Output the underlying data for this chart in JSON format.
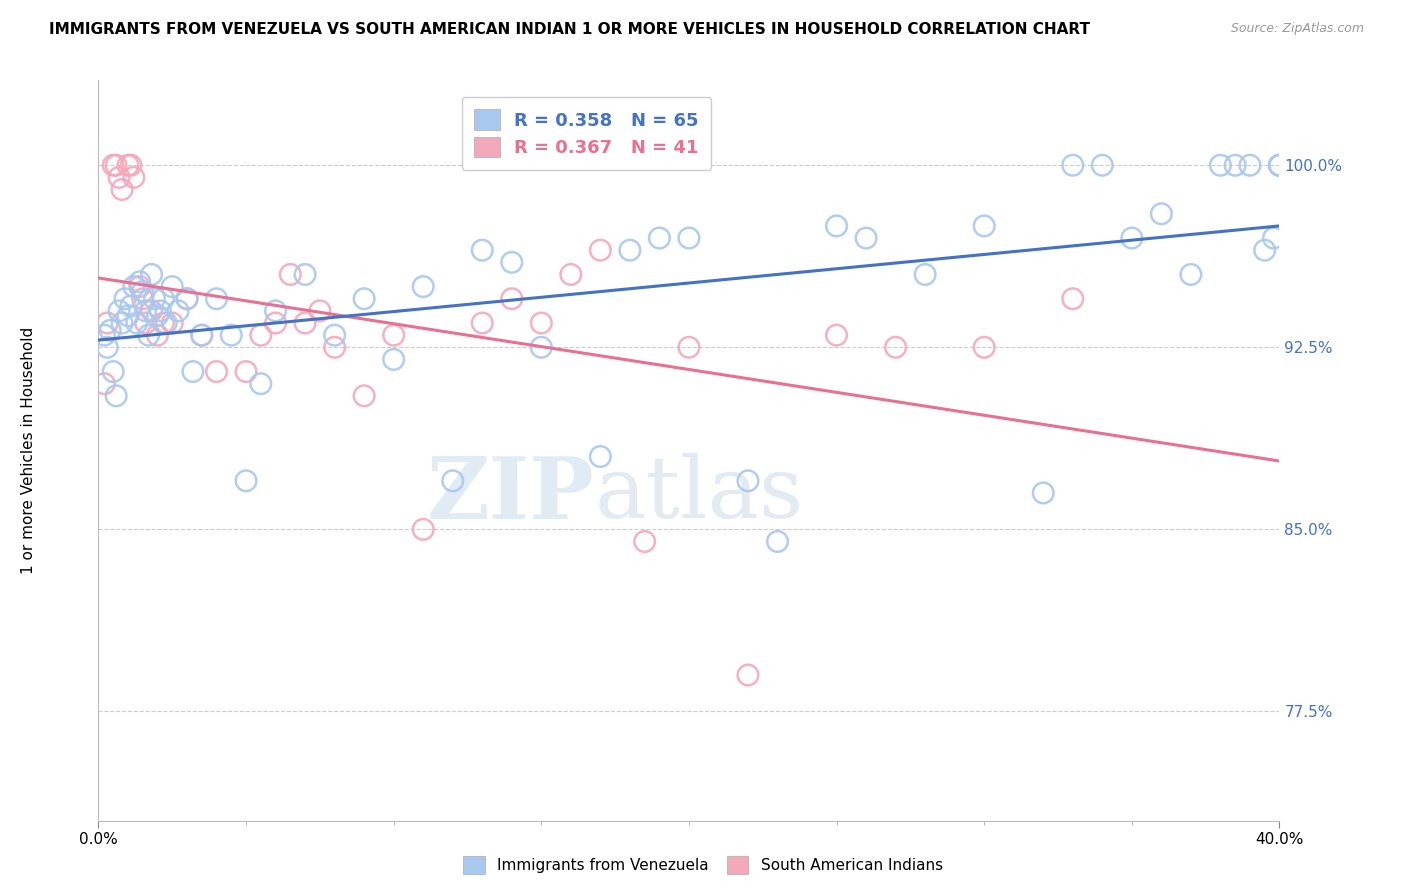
{
  "title": "IMMIGRANTS FROM VENEZUELA VS SOUTH AMERICAN INDIAN 1 OR MORE VEHICLES IN HOUSEHOLD CORRELATION CHART",
  "source": "Source: ZipAtlas.com",
  "ylabel": "1 or more Vehicles in Household",
  "yticks": [
    77.5,
    85.0,
    92.5,
    100.0
  ],
  "ytick_labels": [
    "77.5%",
    "85.0%",
    "92.5%",
    "100.0%"
  ],
  "xmin": 0.0,
  "xmax": 40.0,
  "ymin": 73.0,
  "ymax": 103.5,
  "blue_R": 0.358,
  "blue_N": 65,
  "pink_R": 0.367,
  "pink_N": 41,
  "blue_color": "#A8C8F0",
  "pink_color": "#F4A8BC",
  "blue_line_color": "#4472C4",
  "pink_line_color": "#E87090",
  "legend_blue_label": "Immigrants from Venezuela",
  "legend_pink_label": "South American Indians",
  "watermark_zip": "ZIP",
  "watermark_atlas": "atlas",
  "blue_x": [
    0.2,
    0.3,
    0.4,
    0.5,
    0.6,
    0.7,
    0.8,
    0.9,
    1.0,
    1.1,
    1.2,
    1.3,
    1.4,
    1.5,
    1.6,
    1.7,
    1.8,
    1.9,
    2.0,
    2.1,
    2.2,
    2.3,
    2.5,
    2.7,
    3.0,
    3.2,
    3.5,
    4.0,
    4.5,
    5.0,
    5.5,
    6.0,
    7.0,
    8.0,
    9.0,
    10.0,
    11.0,
    12.0,
    13.0,
    14.0,
    15.0,
    17.0,
    18.0,
    19.0,
    20.0,
    22.0,
    23.0,
    25.0,
    26.0,
    28.0,
    30.0,
    32.0,
    33.0,
    34.0,
    35.0,
    36.0,
    37.0,
    38.0,
    38.5,
    39.0,
    39.5,
    39.8,
    40.0,
    40.0,
    40.0
  ],
  "blue_y": [
    93.0,
    92.5,
    93.2,
    91.5,
    90.5,
    94.0,
    93.5,
    94.5,
    93.8,
    94.2,
    95.0,
    93.5,
    95.2,
    94.8,
    94.0,
    93.0,
    95.5,
    94.5,
    93.8,
    94.0,
    94.5,
    93.5,
    95.0,
    94.0,
    94.5,
    91.5,
    93.0,
    94.5,
    93.0,
    87.0,
    91.0,
    94.0,
    95.5,
    93.0,
    94.5,
    92.0,
    95.0,
    87.0,
    96.5,
    96.0,
    92.5,
    88.0,
    96.5,
    97.0,
    97.0,
    87.0,
    84.5,
    97.5,
    97.0,
    95.5,
    97.5,
    86.5,
    100.0,
    100.0,
    97.0,
    98.0,
    95.5,
    100.0,
    100.0,
    100.0,
    96.5,
    97.0,
    100.0,
    100.0,
    100.0
  ],
  "pink_x": [
    0.2,
    0.3,
    0.5,
    0.6,
    0.7,
    0.8,
    1.0,
    1.1,
    1.2,
    1.4,
    1.5,
    1.6,
    1.8,
    2.0,
    2.2,
    2.5,
    3.0,
    3.5,
    4.0,
    5.0,
    5.5,
    6.0,
    6.5,
    7.0,
    7.5,
    8.0,
    9.0,
    10.0,
    11.0,
    13.0,
    14.0,
    15.0,
    16.0,
    17.0,
    18.5,
    20.0,
    22.0,
    25.0,
    27.0,
    30.0,
    33.0
  ],
  "pink_y": [
    91.0,
    93.5,
    100.0,
    100.0,
    99.5,
    99.0,
    100.0,
    100.0,
    99.5,
    95.0,
    94.5,
    93.5,
    94.0,
    93.0,
    93.5,
    93.5,
    94.5,
    93.0,
    91.5,
    91.5,
    93.0,
    93.5,
    95.5,
    93.5,
    94.0,
    92.5,
    90.5,
    93.0,
    85.0,
    93.5,
    94.5,
    93.5,
    95.5,
    96.5,
    84.5,
    92.5,
    79.0,
    93.0,
    92.5,
    92.5,
    94.5
  ]
}
